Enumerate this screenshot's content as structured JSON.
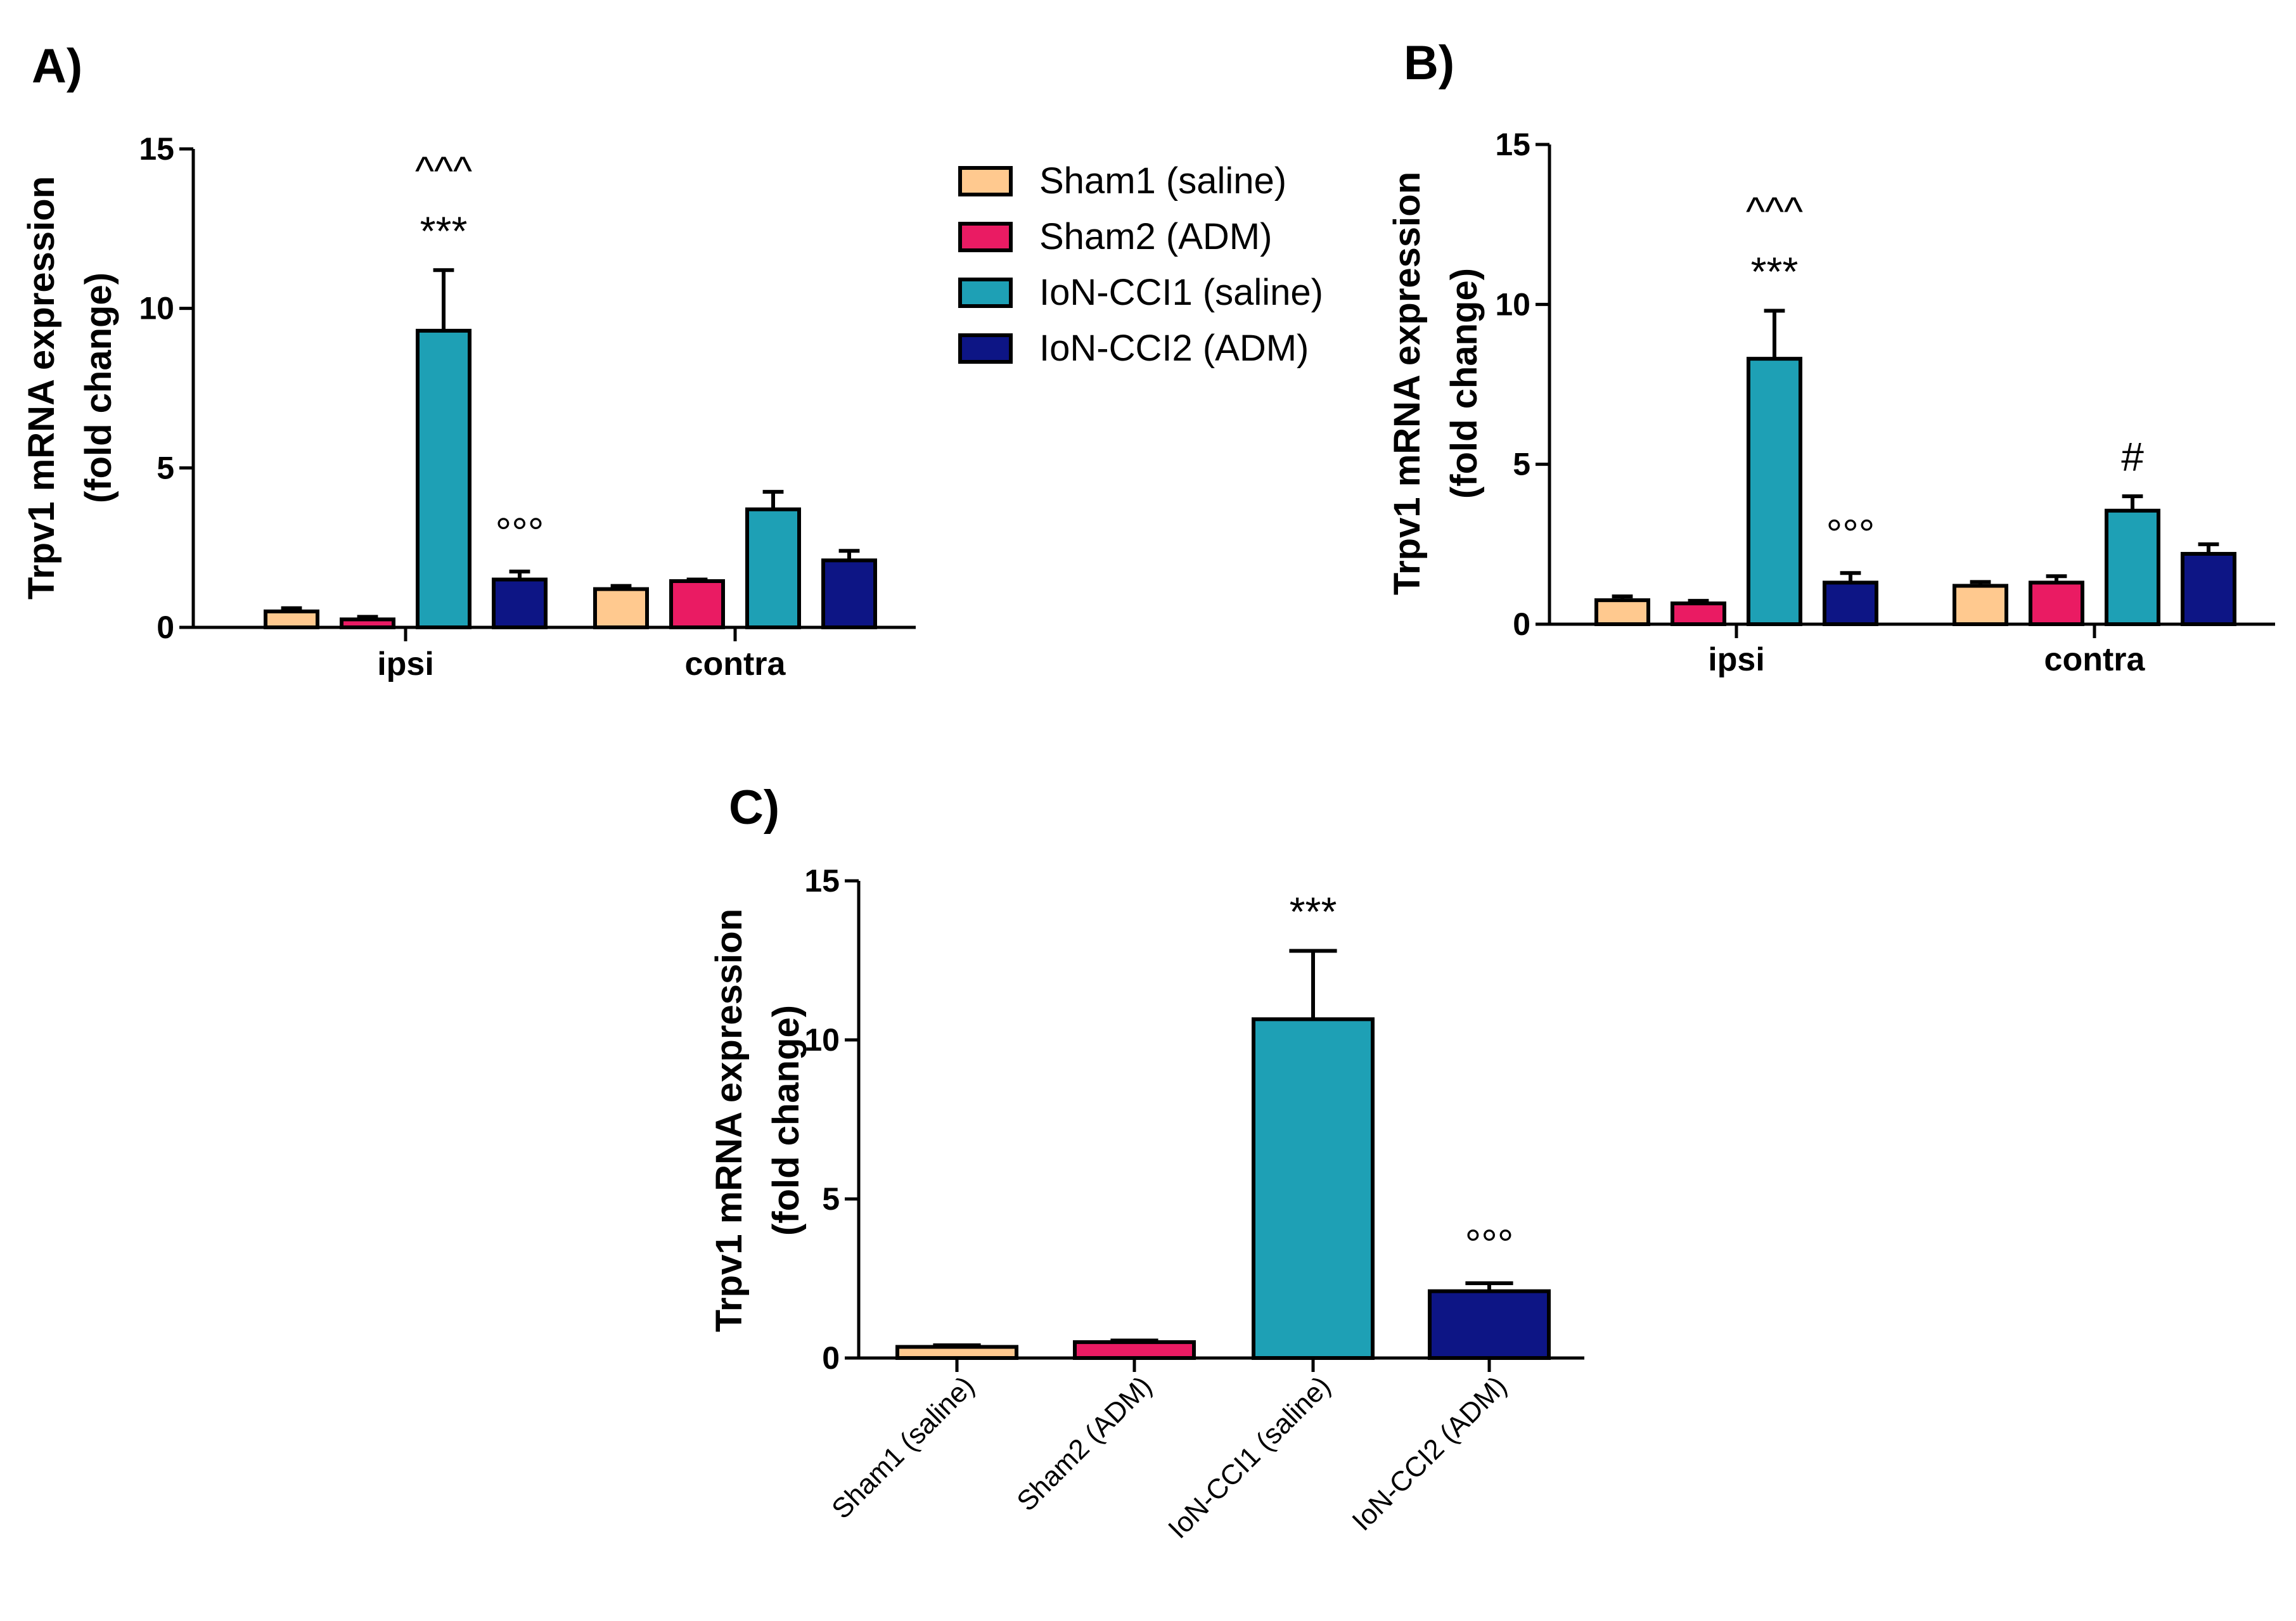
{
  "legend": [
    {
      "label": "Sham1 (saline)",
      "color": "#FFC98F"
    },
    {
      "label": "Sham2 (ADM)",
      "color": "#EA1B63"
    },
    {
      "label": "IoN-CCI1 (saline)",
      "color": "#1EA0B5"
    },
    {
      "label": "IoN-CCI2 (ADM)",
      "color": "#0D1585"
    }
  ],
  "chart_data": [
    {
      "panel": "A)",
      "type": "bar",
      "ylabel": [
        "Trpv1 mRNA expression",
        "(fold change)"
      ],
      "ylim": [
        0,
        15
      ],
      "yticks": [
        0,
        5,
        10,
        15
      ],
      "categories": [
        "ipsi",
        "contra"
      ],
      "series": [
        {
          "name": "Sham1 (saline)",
          "color": "#FFC98F",
          "values": [
            0.5,
            1.2
          ],
          "errors": [
            0.1,
            0.1
          ]
        },
        {
          "name": "Sham2 (ADM)",
          "color": "#EA1B63",
          "values": [
            0.25,
            1.45
          ],
          "errors": [
            0.08,
            0.05
          ]
        },
        {
          "name": "IoN-CCI1 (saline)",
          "color": "#1EA0B5",
          "values": [
            9.3,
            3.7
          ],
          "errors": [
            1.9,
            0.55
          ]
        },
        {
          "name": "IoN-CCI2 (ADM)",
          "color": "#0D1585",
          "values": [
            1.5,
            2.1
          ],
          "errors": [
            0.25,
            0.3
          ]
        }
      ],
      "annotations": [
        {
          "category": 0,
          "series": 2,
          "lines": [
            "^^^",
            "***"
          ]
        },
        {
          "category": 0,
          "series": 3,
          "lines": [
            "°°°"
          ]
        }
      ]
    },
    {
      "panel": "B)",
      "type": "bar",
      "ylabel": [
        "Trpv1 mRNA expression",
        "(fold change)"
      ],
      "ylim": [
        0,
        15
      ],
      "yticks": [
        0,
        5,
        10,
        15
      ],
      "categories": [
        "ipsi",
        "contra"
      ],
      "series": [
        {
          "name": "Sham1 (saline)",
          "color": "#FFC98F",
          "values": [
            0.75,
            1.2
          ],
          "errors": [
            0.12,
            0.12
          ]
        },
        {
          "name": "Sham2 (ADM)",
          "color": "#EA1B63",
          "values": [
            0.65,
            1.3
          ],
          "errors": [
            0.08,
            0.2
          ]
        },
        {
          "name": "IoN-CCI1 (saline)",
          "color": "#1EA0B5",
          "values": [
            8.3,
            3.55
          ],
          "errors": [
            1.5,
            0.45
          ]
        },
        {
          "name": "IoN-CCI2 (ADM)",
          "color": "#0D1585",
          "values": [
            1.3,
            2.2
          ],
          "errors": [
            0.3,
            0.3
          ]
        }
      ],
      "annotations": [
        {
          "category": 0,
          "series": 2,
          "lines": [
            "^^^",
            "***"
          ]
        },
        {
          "category": 0,
          "series": 3,
          "lines": [
            "°°°"
          ]
        },
        {
          "category": 1,
          "series": 2,
          "lines": [
            "#"
          ]
        }
      ]
    },
    {
      "panel": "C)",
      "type": "bar",
      "ylabel": [
        "Trpv1 mRNA expression",
        "(fold change)"
      ],
      "ylim": [
        0,
        15
      ],
      "yticks": [
        0,
        5,
        10,
        15
      ],
      "categories": [
        "Sham1 (saline)",
        "Sham2 (ADM)",
        "IoN-CCI1 (saline)",
        "IoN-CCI2 (ADM)"
      ],
      "values": [
        0.35,
        0.5,
        10.65,
        2.1
      ],
      "errors": [
        0.05,
        0.05,
        2.15,
        0.25
      ],
      "colors": [
        "#FFC98F",
        "#EA1B63",
        "#1EA0B5",
        "#0D1585"
      ],
      "annotations": [
        {
          "index": 2,
          "lines": [
            "***"
          ]
        },
        {
          "index": 3,
          "lines": [
            "°°°"
          ]
        }
      ]
    }
  ]
}
